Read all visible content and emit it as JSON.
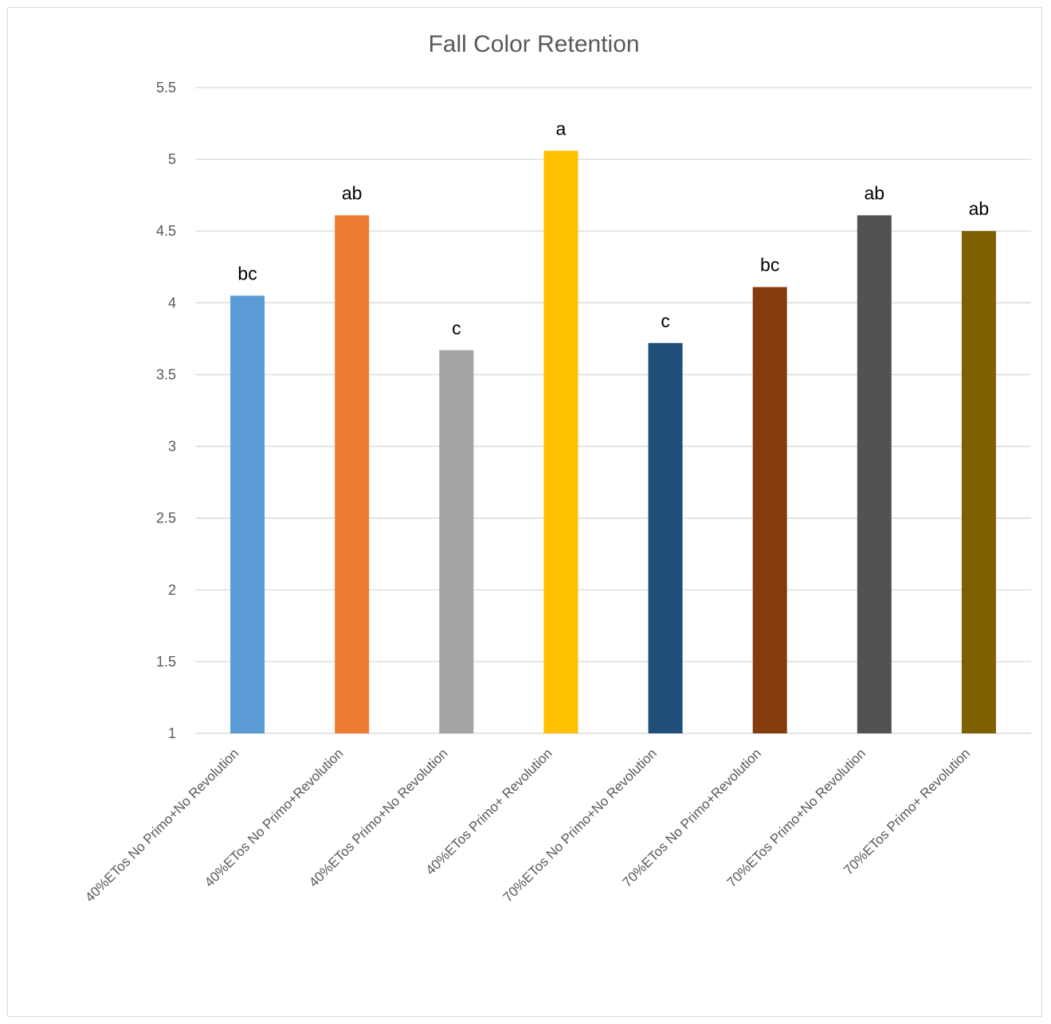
{
  "chart_data": {
    "type": "bar",
    "title": "Fall Color Retention",
    "xlabel": "",
    "ylabel": "",
    "ylim": [
      1,
      5.5
    ],
    "yticks": [
      1,
      1.5,
      2,
      2.5,
      3,
      3.5,
      4,
      4.5,
      5,
      5.5
    ],
    "grid": true,
    "legend": "none",
    "categories": [
      "40%ETos No Primo+No Revolution",
      "40%ETos No Primo+Revolution",
      "40%ETos Primo+No Revolution",
      "40%ETos Primo+ Revolution",
      "70%ETos No Primo+No Revolution",
      "70%ETos No Primo+Revolution",
      "70%ETos Primo+No Revolution",
      "70%ETos Primo+ Revolution"
    ],
    "values": [
      4.05,
      4.61,
      3.67,
      5.06,
      3.72,
      4.11,
      4.61,
      4.5
    ],
    "data_labels": [
      "bc",
      "ab",
      "c",
      "a",
      "c",
      "bc",
      "ab",
      "ab"
    ],
    "colors": [
      "#5b9bd5",
      "#ed7d31",
      "#a5a5a5",
      "#ffc000",
      "#1f4e79",
      "#843c0c",
      "#525252",
      "#7f6000"
    ]
  }
}
